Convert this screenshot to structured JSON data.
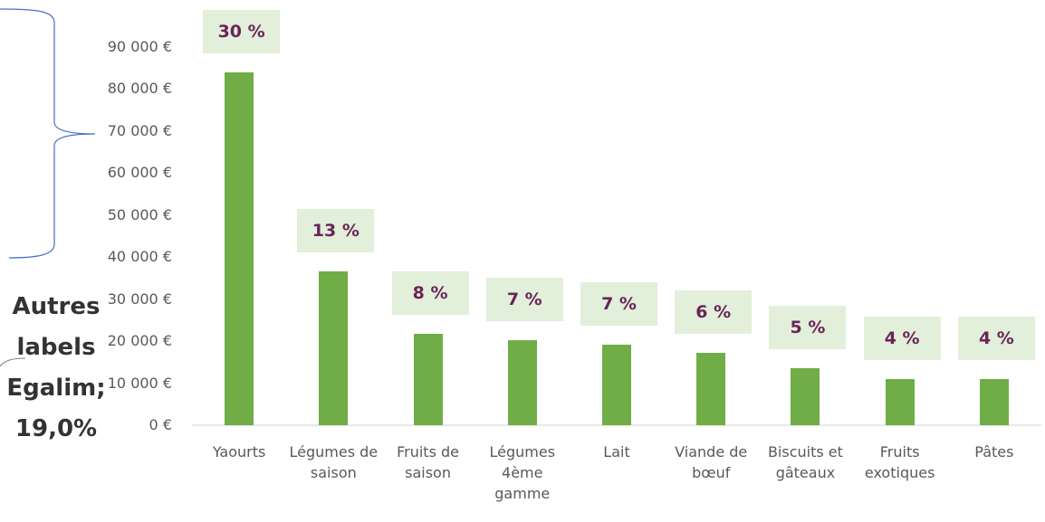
{
  "chart_data": {
    "type": "bar",
    "categories": [
      "Yaourts",
      "Légumes de saison",
      "Fruits de saison",
      "Légumes 4ème gamme",
      "Lait",
      "Viande de bœuf",
      "Biscuits et gâteaux",
      "Fruits exotiques",
      "Pâtes"
    ],
    "values": [
      84000,
      36600,
      21700,
      20200,
      19200,
      17200,
      13600,
      11000,
      11000
    ],
    "shares": [
      {
        "value": 30,
        "label": "30 %"
      },
      {
        "value": 13,
        "label": "13 %"
      },
      {
        "value": 8,
        "label": "8 %"
      },
      {
        "value": 7,
        "label": "7 %"
      },
      {
        "value": 7,
        "label": "7 %"
      },
      {
        "value": 6,
        "label": "6 %"
      },
      {
        "value": 5,
        "label": "5 %"
      },
      {
        "value": 4,
        "label": "4 %"
      },
      {
        "value": 4,
        "label": "4 %"
      }
    ],
    "color": "#70ad47",
    "ylim": [
      0,
      90000
    ],
    "yticks": [
      {
        "value": 0,
        "label": "0 €"
      },
      {
        "value": 10000,
        "label": "10 000 €"
      },
      {
        "value": 20000,
        "label": "20 000 €"
      },
      {
        "value": 30000,
        "label": "30 000 €"
      },
      {
        "value": 40000,
        "label": "40 000 €"
      },
      {
        "value": 50000,
        "label": "50 000 €"
      },
      {
        "value": 60000,
        "label": "60 000 €"
      },
      {
        "value": 70000,
        "label": "70 000 €"
      },
      {
        "value": 80000,
        "label": "80 000 €"
      },
      {
        "value": 90000,
        "label": "90 000 €"
      }
    ],
    "grid": false,
    "annotation": "Autres labels Egalim; 19,0%"
  }
}
